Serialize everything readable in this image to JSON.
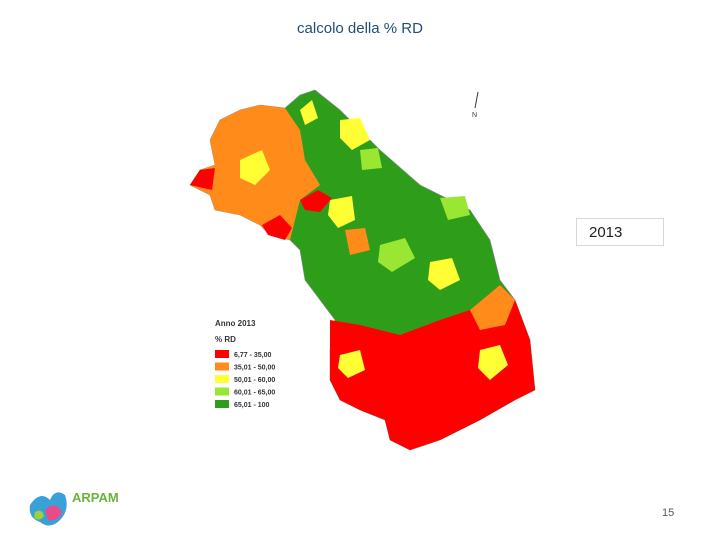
{
  "header": {
    "title": "calcolo della % RD"
  },
  "year_box": "2013",
  "north": "N",
  "legend": {
    "title": "Anno 2013",
    "subtitle": "% RD",
    "items": [
      {
        "label": "6,77 - 35,00",
        "color": "#ff0000"
      },
      {
        "label": "35,01 - 50,00",
        "color": "#ff8c1a"
      },
      {
        "label": "50,01 - 60,00",
        "color": "#ffff33"
      },
      {
        "label": "60,01 - 65,00",
        "color": "#99e633"
      },
      {
        "label": "65,01 - 100",
        "color": "#2e9e1a"
      }
    ]
  },
  "logo": "ARPAM",
  "page_number": "15"
}
